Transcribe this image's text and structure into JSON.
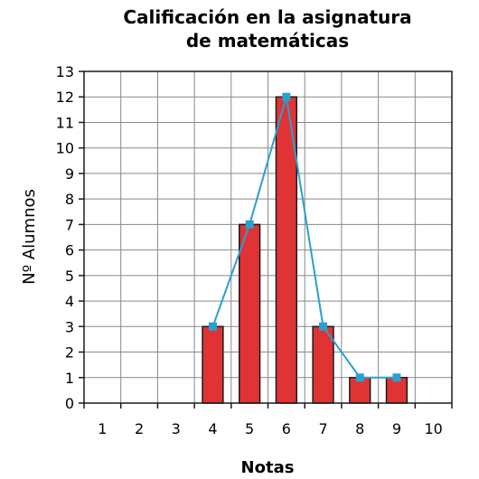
{
  "chart_data": {
    "type": "bar",
    "title": [
      "Calificación en la asignatura",
      "de matemáticas"
    ],
    "xlabel": "Notas",
    "ylabel": "Nº Alumnos",
    "categories": [
      "1",
      "2",
      "3",
      "4",
      "5",
      "6",
      "7",
      "8",
      "9",
      "10"
    ],
    "values": [
      0,
      0,
      0,
      3,
      7,
      12,
      3,
      1,
      1,
      0
    ],
    "line_overlay": {
      "x": [
        "4",
        "5",
        "6",
        "7",
        "8",
        "9"
      ],
      "y": [
        3,
        7,
        12,
        3,
        1,
        1
      ]
    },
    "ylim": [
      0,
      13
    ],
    "yticks": [
      0,
      1,
      2,
      3,
      4,
      5,
      6,
      7,
      8,
      9,
      10,
      11,
      12,
      13
    ],
    "grid": true,
    "colors": {
      "bar": "#e03434",
      "bar_stroke": "#1a1a1a",
      "line": "#2a9fd0",
      "marker": "#2a9fd0",
      "grid": "#888888"
    }
  }
}
